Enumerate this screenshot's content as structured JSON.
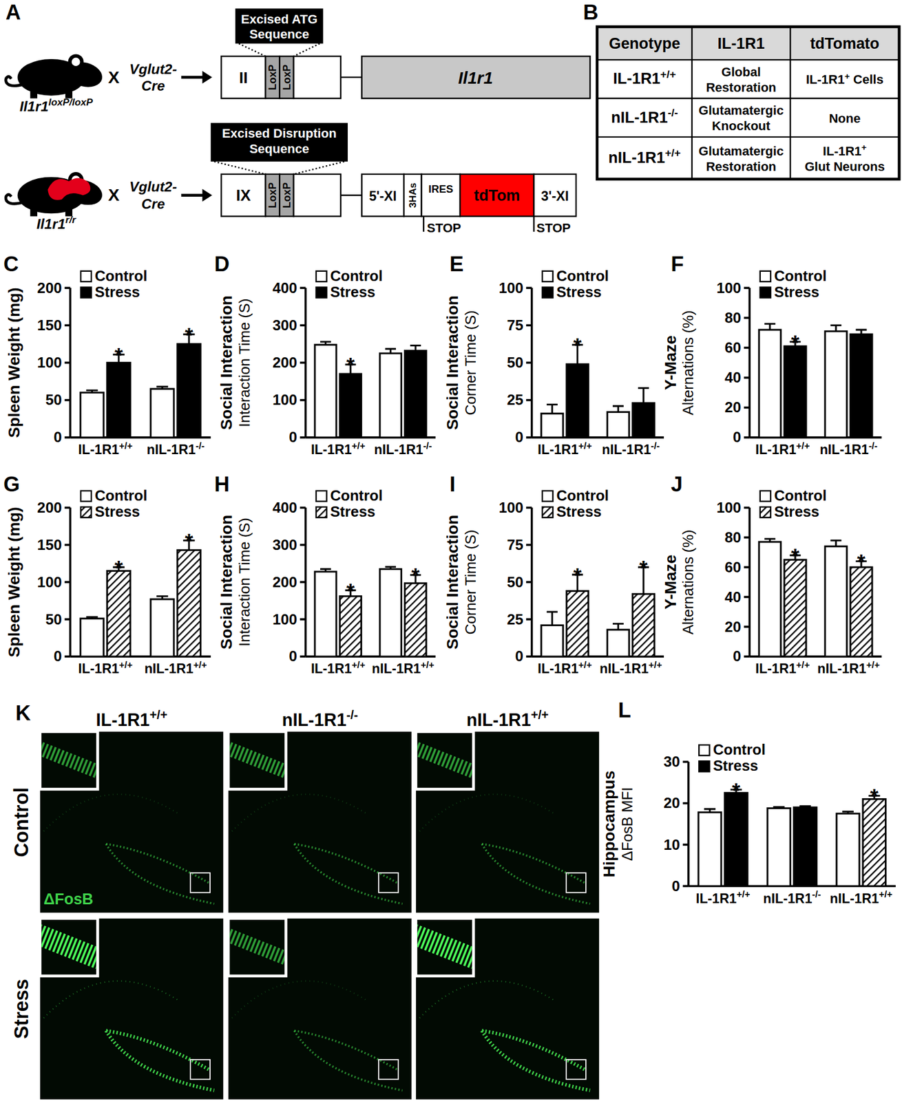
{
  "diagram": {
    "panel": "A",
    "cross_symbol": "X",
    "crosses": [
      {
        "mouse": {
          "gene": "Il1r1",
          "allele": "loxP/loxP"
        },
        "cre": [
          "Vglut2-",
          "Cre"
        ],
        "callout": [
          "Excised ATG",
          "Sequence"
        ],
        "segments": [
          "II",
          "LoxP",
          "LoxP"
        ],
        "gene_box": [
          "Il1r1"
        ]
      },
      {
        "mouse": {
          "gene": "Il1r1",
          "allele": "r/r"
        },
        "cre": [
          "Vglut2-",
          "Cre"
        ],
        "callout": [
          "Excised Disruption",
          "Sequence"
        ],
        "segments": [
          "IX",
          "LoxP",
          "LoxP"
        ],
        "gene_box": [
          "5'-XI",
          "3HAs",
          "IRES",
          "tdTom",
          "3'-XI"
        ],
        "stops": [
          "STOP",
          "STOP"
        ]
      }
    ]
  },
  "table": {
    "panel": "B",
    "header": [
      "Genotype",
      "IL-1R1",
      "tdTomato"
    ],
    "rows": [
      [
        [
          "IL-1R1+/+"
        ],
        [
          "Global",
          "Restoration"
        ],
        [
          "IL-1R1+ Cells"
        ]
      ],
      [
        [
          "nIL-1R1-/-"
        ],
        [
          "Glutamatergic",
          "Knockout"
        ],
        [
          "None"
        ]
      ],
      [
        [
          "nIL-1R1+/+"
        ],
        [
          "Glutamatergic",
          "Restoration"
        ],
        [
          "IL-1R1+",
          "Glut Neurons"
        ]
      ]
    ]
  },
  "images": {
    "panel": "K",
    "columns": [
      "IL-1R1+/+",
      "nIL-1R1-/-",
      "nIL-1R1+/+"
    ],
    "rows": [
      "Control",
      "Stress"
    ],
    "stain": "ΔFosB"
  },
  "chart_data": [
    {
      "panel": "C",
      "type": "bar",
      "y_label": "Spleen Weight (mg)",
      "categories": [
        "IL-1R1+/+",
        "nIL-1R1-/-"
      ],
      "series": [
        {
          "name": "Control",
          "color": "#ffffff",
          "values": [
            60,
            65
          ],
          "errors": [
            3,
            3
          ]
        },
        {
          "name": "Stress",
          "color": "#000000",
          "values": [
            100,
            125
          ],
          "errors": [
            11,
            13
          ],
          "annotations": [
            "*",
            "*"
          ]
        }
      ],
      "ylim": [
        0,
        200
      ],
      "yticks": [
        0,
        50,
        100,
        150,
        200
      ],
      "legend": "upper left"
    },
    {
      "panel": "D",
      "type": "bar",
      "y_label": "Social Interaction",
      "y_sublabel": "Interaction Time (S)",
      "categories": [
        "IL-1R1+/+",
        "nIL-1R1-/-"
      ],
      "series": [
        {
          "name": "Control",
          "color": "#ffffff",
          "values": [
            248,
            225
          ],
          "errors": [
            8,
            12
          ]
        },
        {
          "name": "Stress",
          "color": "#000000",
          "values": [
            170,
            232
          ],
          "errors": [
            25,
            14
          ],
          "annotations": [
            "*",
            null
          ]
        }
      ],
      "ylim": [
        0,
        400
      ],
      "yticks": [
        0,
        100,
        200,
        300,
        400
      ],
      "legend": "upper left"
    },
    {
      "panel": "E",
      "type": "bar",
      "y_label": "Social Interaction",
      "y_sublabel": "Corner Time (S)",
      "categories": [
        "IL-1R1+/+",
        "nIL-1R1-/-"
      ],
      "series": [
        {
          "name": "Control",
          "color": "#ffffff",
          "values": [
            16,
            17
          ],
          "errors": [
            6,
            4
          ]
        },
        {
          "name": "Stress",
          "color": "#000000",
          "values": [
            49,
            23
          ],
          "errors": [
            13,
            10
          ],
          "annotations": [
            "*",
            null
          ]
        }
      ],
      "ylim": [
        0,
        100
      ],
      "yticks": [
        0,
        25,
        50,
        75,
        100
      ],
      "legend": "upper left"
    },
    {
      "panel": "F",
      "type": "bar",
      "y_label": "Y-Maze",
      "y_sublabel": "Alternations (%)",
      "categories": [
        "IL-1R1+/+",
        "nIL-1R1-/-"
      ],
      "series": [
        {
          "name": "Control",
          "color": "#ffffff",
          "values": [
            72,
            71
          ],
          "errors": [
            4,
            4
          ]
        },
        {
          "name": "Stress",
          "color": "#000000",
          "values": [
            61,
            69
          ],
          "errors": [
            3,
            3
          ],
          "annotations": [
            "*",
            null
          ]
        }
      ],
      "ylim": [
        0,
        100
      ],
      "yticks": [
        0,
        20,
        40,
        60,
        80,
        100
      ],
      "legend": "upper left"
    },
    {
      "panel": "G",
      "type": "bar",
      "y_label": "Spleen Weight (mg)",
      "categories": [
        "IL-1R1+/+",
        "nIL-1R1+/+"
      ],
      "series": [
        {
          "name": "Control",
          "color": "#ffffff",
          "values": [
            51,
            77
          ],
          "errors": [
            2,
            4
          ]
        },
        {
          "name": "Stress",
          "color": "hatched",
          "values": [
            115,
            143
          ],
          "errors": [
            5,
            13
          ],
          "annotations": [
            "*",
            "*"
          ]
        }
      ],
      "ylim": [
        0,
        200
      ],
      "yticks": [
        0,
        50,
        100,
        150,
        200
      ],
      "legend": "upper left"
    },
    {
      "panel": "H",
      "type": "bar",
      "y_label": "Social Interaction",
      "y_sublabel": "Interaction Time (S)",
      "categories": [
        "IL-1R1+/+",
        "nIL-1R1+/+"
      ],
      "series": [
        {
          "name": "Control",
          "color": "#ffffff",
          "values": [
            228,
            235
          ],
          "errors": [
            7,
            6
          ]
        },
        {
          "name": "Stress",
          "color": "hatched",
          "values": [
            162,
            197
          ],
          "errors": [
            16,
            22
          ],
          "annotations": [
            "*",
            "*"
          ]
        }
      ],
      "ylim": [
        0,
        400
      ],
      "yticks": [
        0,
        100,
        200,
        300,
        400
      ],
      "legend": "upper left"
    },
    {
      "panel": "I",
      "type": "bar",
      "y_label": "Social Interaction",
      "y_sublabel": "Corner Time (S)",
      "categories": [
        "IL-1R1+/+",
        "nIL-1R1+/+"
      ],
      "series": [
        {
          "name": "Control",
          "color": "#ffffff",
          "values": [
            21,
            18
          ],
          "errors": [
            9,
            4
          ]
        },
        {
          "name": "Stress",
          "color": "hatched",
          "values": [
            44,
            42
          ],
          "errors": [
            11,
            18
          ],
          "annotations": [
            "*",
            "*"
          ]
        }
      ],
      "ylim": [
        0,
        100
      ],
      "yticks": [
        0,
        25,
        50,
        75,
        100
      ],
      "legend": "upper left"
    },
    {
      "panel": "J",
      "type": "bar",
      "y_label": "Y-Maze",
      "y_sublabel": "Alternations (%)",
      "categories": [
        "IL-1R1+/+",
        "nIL-1R1+/+"
      ],
      "series": [
        {
          "name": "Control",
          "color": "#ffffff",
          "values": [
            77,
            74
          ],
          "errors": [
            2,
            4
          ]
        },
        {
          "name": "Stress",
          "color": "hatched",
          "values": [
            65,
            60
          ],
          "errors": [
            3,
            4
          ],
          "annotations": [
            "*",
            "*"
          ]
        }
      ],
      "ylim": [
        0,
        100
      ],
      "yticks": [
        0,
        20,
        40,
        60,
        80,
        100
      ],
      "legend": "upper left"
    },
    {
      "panel": "L",
      "type": "bar",
      "y_label": "Hippocampus",
      "y_sublabel": "ΔFosB MFI",
      "categories": [
        "IL-1R1+/+",
        "nIL-1R1-/-",
        "nIL-1R1+/+"
      ],
      "series": [
        {
          "name": "Control",
          "color": "#ffffff",
          "values": [
            17.8,
            18.8,
            17.5
          ],
          "errors": [
            0.8,
            0.3,
            0.5
          ]
        },
        {
          "name": "Stress",
          "color": "#000000",
          "colors": [
            "#000000",
            "#000000",
            "hatched"
          ],
          "values": [
            22.5,
            19,
            21
          ],
          "errors": [
            0.8,
            0.3,
            0.8
          ],
          "annotations": [
            "*",
            null,
            "*"
          ]
        }
      ],
      "ylim": [
        0,
        30
      ],
      "yticks": [
        0,
        10,
        20,
        30
      ],
      "legend": "upper left"
    }
  ]
}
